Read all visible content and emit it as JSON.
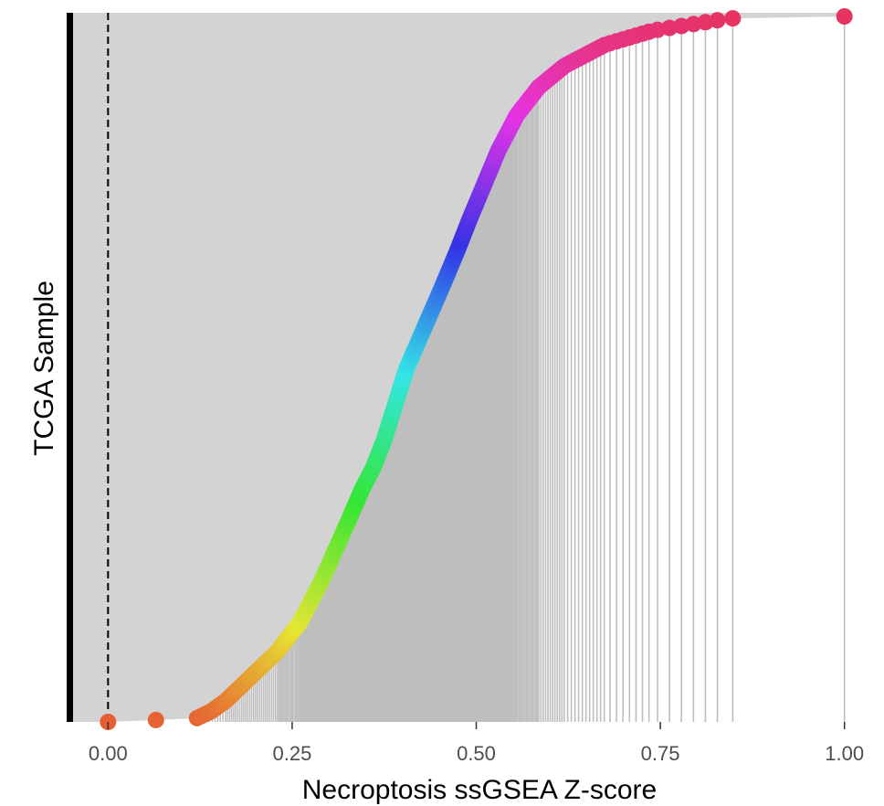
{
  "chart_data": {
    "type": "scatter",
    "style": "lollipop-ranked",
    "title": "",
    "xlabel": "Necroptosis ssGSEA Z-score",
    "ylabel": "TCGA Sample",
    "xlim": [
      -0.05,
      1.05
    ],
    "x_ticks": [
      0.0,
      0.25,
      0.5,
      0.75,
      1.0
    ],
    "x_tick_labels": [
      "0.00",
      "0.25",
      "0.50",
      "0.75",
      "1.00"
    ],
    "reference_line_x": 0.0,
    "reference_line_style": "dashed",
    "grid": false,
    "legend": "none",
    "n_samples": 370,
    "x_quantile_curve": [
      [
        0.0,
        0.0
      ],
      [
        0.005,
        0.12
      ],
      [
        0.015,
        0.14
      ],
      [
        0.03,
        0.16
      ],
      [
        0.06,
        0.19
      ],
      [
        0.1,
        0.23
      ],
      [
        0.14,
        0.26
      ],
      [
        0.2,
        0.29
      ],
      [
        0.27,
        0.32
      ],
      [
        0.33,
        0.345
      ],
      [
        0.36,
        0.36
      ],
      [
        0.4,
        0.375
      ],
      [
        0.45,
        0.39
      ],
      [
        0.5,
        0.405
      ],
      [
        0.56,
        0.43
      ],
      [
        0.62,
        0.455
      ],
      [
        0.67,
        0.475
      ],
      [
        0.71,
        0.49
      ],
      [
        0.76,
        0.51
      ],
      [
        0.81,
        0.53
      ],
      [
        0.86,
        0.555
      ],
      [
        0.9,
        0.585
      ],
      [
        0.93,
        0.62
      ],
      [
        0.96,
        0.675
      ],
      [
        0.98,
        0.74
      ],
      [
        0.995,
        0.83
      ],
      [
        0.9975,
        0.85
      ],
      [
        1.0,
        1.0
      ]
    ],
    "color_scale": "hue",
    "colors": {
      "background_fill": "#d3d3d3",
      "stem": "#bebebe",
      "left_bar": "#000000",
      "reference_line": "#000000"
    }
  }
}
